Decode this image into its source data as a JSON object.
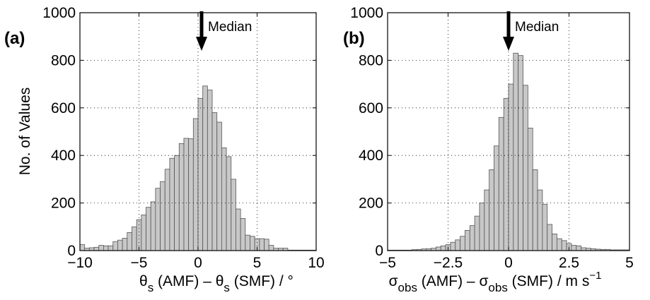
{
  "chart_data": [
    {
      "type": "bar",
      "panel_label": "(a)",
      "ylabel": "No. of Values",
      "xlabel": {
        "parts": [
          {
            "t": "θ"
          },
          {
            "t": "s",
            "sub": true
          },
          {
            "t": " (AMF) – θ"
          },
          {
            "t": "s",
            "sub": true
          },
          {
            "t": " (SMF) / °"
          }
        ]
      },
      "xlim": [
        -10,
        10
      ],
      "ylim": [
        0,
        1000
      ],
      "xticks": [
        -10,
        -5,
        0,
        5,
        10
      ],
      "xtick_labels": [
        "−10",
        "−5",
        "0",
        "5",
        "10"
      ],
      "yticks": [
        0,
        200,
        400,
        600,
        800,
        1000
      ],
      "ytick_labels": [
        "0",
        "200",
        "400",
        "600",
        "800",
        "1000"
      ],
      "grid": true,
      "bin_width": 0.4,
      "bin_centers": [
        -9.8,
        -9.4,
        -9.0,
        -8.6,
        -8.2,
        -7.8,
        -7.4,
        -7.0,
        -6.6,
        -6.2,
        -5.8,
        -5.4,
        -5.0,
        -4.6,
        -4.2,
        -3.8,
        -3.4,
        -3.0,
        -2.6,
        -2.2,
        -1.8,
        -1.4,
        -1.0,
        -0.6,
        -0.2,
        0.2,
        0.6,
        1.0,
        1.4,
        1.8,
        2.2,
        2.6,
        3.0,
        3.4,
        3.8,
        4.2,
        4.6,
        5.0,
        5.4,
        5.8,
        6.2,
        6.6,
        7.0,
        7.4,
        7.8,
        8.2,
        8.6,
        9.0,
        9.4,
        9.8
      ],
      "values": [
        25,
        10,
        12,
        14,
        22,
        20,
        20,
        38,
        44,
        52,
        76,
        100,
        130,
        150,
        182,
        205,
        262,
        290,
        342,
        388,
        400,
        450,
        472,
        470,
        555,
        640,
        692,
        675,
        580,
        540,
        432,
        395,
        300,
        175,
        135,
        65,
        60,
        50,
        50,
        48,
        22,
        10,
        10,
        10,
        2,
        2,
        2,
        2,
        2,
        2
      ],
      "annotation": {
        "text": "Median",
        "x": 0.3
      }
    },
    {
      "type": "bar",
      "panel_label": "(b)",
      "ylabel": "",
      "xlabel": {
        "parts": [
          {
            "t": "σ"
          },
          {
            "t": "obs",
            "sub": true
          },
          {
            "t": " (AMF) – σ"
          },
          {
            "t": "obs",
            "sub": true
          },
          {
            "t": " (SMF) / m s"
          },
          {
            "t": "−1",
            "sup": true
          }
        ]
      },
      "xlim": [
        -5,
        5
      ],
      "ylim": [
        0,
        1000
      ],
      "xticks": [
        -5,
        -2.5,
        0,
        2.5,
        5
      ],
      "xtick_labels": [
        "−5",
        "−2.5",
        "0",
        "2.5",
        "5"
      ],
      "yticks": [
        0,
        200,
        400,
        600,
        800,
        1000
      ],
      "ytick_labels": [
        "0",
        "200",
        "400",
        "600",
        "800",
        "1000"
      ],
      "grid": true,
      "bin_width": 0.2,
      "bin_centers": [
        -4.9,
        -4.7,
        -4.5,
        -4.3,
        -4.1,
        -3.9,
        -3.7,
        -3.5,
        -3.3,
        -3.1,
        -2.9,
        -2.7,
        -2.5,
        -2.3,
        -2.1,
        -1.9,
        -1.7,
        -1.5,
        -1.3,
        -1.1,
        -0.9,
        -0.7,
        -0.5,
        -0.3,
        -0.1,
        0.1,
        0.3,
        0.5,
        0.7,
        0.9,
        1.1,
        1.3,
        1.5,
        1.7,
        1.9,
        2.1,
        2.3,
        2.5,
        2.7,
        2.9,
        3.1,
        3.3,
        3.5,
        3.7,
        3.9,
        4.1,
        4.3,
        4.5,
        4.7,
        4.9
      ],
      "values": [
        2,
        2,
        2,
        2,
        2,
        4,
        5,
        7,
        8,
        10,
        15,
        20,
        25,
        35,
        45,
        60,
        85,
        105,
        145,
        200,
        255,
        340,
        440,
        560,
        640,
        700,
        830,
        820,
        695,
        515,
        340,
        255,
        195,
        110,
        70,
        50,
        42,
        30,
        22,
        20,
        12,
        10,
        8,
        6,
        5,
        5,
        3,
        3,
        3,
        3
      ],
      "annotation": {
        "text": "Median",
        "x": 0.0
      }
    }
  ]
}
